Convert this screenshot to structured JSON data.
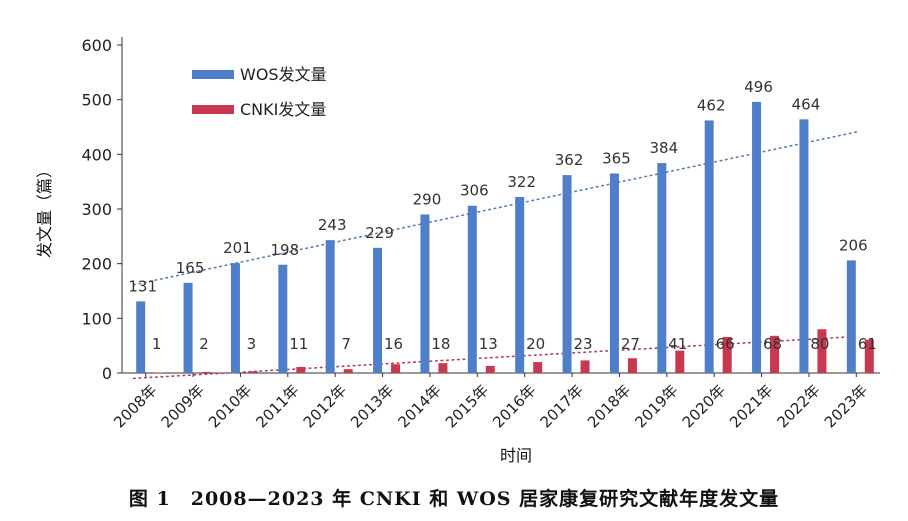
{
  "chart_data": {
    "type": "bar",
    "categories": [
      "2008年",
      "2009年",
      "2010年",
      "2011年",
      "2012年",
      "2013年",
      "2014年",
      "2015年",
      "2016年",
      "2017年",
      "2018年",
      "2019年",
      "2020年",
      "2021年",
      "2022年",
      "2023年"
    ],
    "series": [
      {
        "name": "WOS发文量",
        "color": "#4f7fc9",
        "values": [
          131,
          165,
          201,
          198,
          243,
          229,
          290,
          306,
          322,
          362,
          365,
          384,
          462,
          496,
          464,
          206
        ],
        "trendline_color": "#5a7fb0"
      },
      {
        "name": "CNKI发文量",
        "color": "#c8394f",
        "values": [
          1,
          2,
          3,
          11,
          7,
          16,
          18,
          13,
          20,
          23,
          27,
          41,
          66,
          68,
          80,
          61
        ],
        "trendline_color": "#b0405a"
      }
    ],
    "trendline": "linear-dotted",
    "ylabel": "发文量（篇）",
    "xlabel": "时间",
    "ylim": [
      0,
      600
    ],
    "yticks": [
      0,
      100,
      200,
      300,
      400,
      500,
      600
    ],
    "grid": false,
    "legend_position": "top-left",
    "caption": "图 1　2008—2023 年 CNKI 和 WOS 居家康复研究文献年度发文量"
  }
}
